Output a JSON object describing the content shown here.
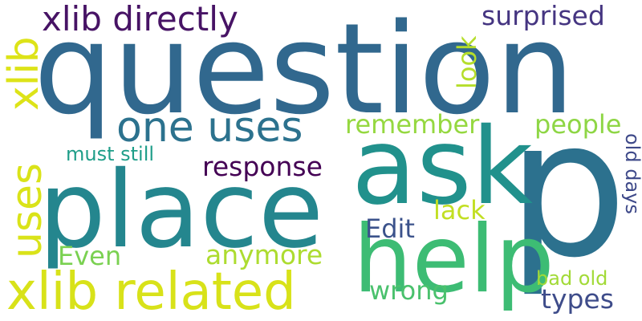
{
  "words": [
    {
      "key": "question",
      "text": "question",
      "color": "#31688e"
    },
    {
      "key": "p",
      "text": "p",
      "color": "#2c718e"
    },
    {
      "key": "ask",
      "text": "ask",
      "color": "#21918c"
    },
    {
      "key": "place",
      "text": "place",
      "color": "#24868e"
    },
    {
      "key": "help",
      "text": "help",
      "color": "#3dbc74"
    },
    {
      "key": "xlib_related",
      "text": "xlib related",
      "color": "#d8e219"
    },
    {
      "key": "xlib_directly",
      "text": "xlib directly",
      "color": "#471365"
    },
    {
      "key": "one_uses",
      "text": "one uses",
      "color": "#2c728e"
    },
    {
      "key": "xlib_vertical",
      "text": "xlib",
      "color": "#dde318"
    },
    {
      "key": "uses_vertical",
      "text": "uses",
      "color": "#dae319"
    },
    {
      "key": "surprised",
      "text": "surprised",
      "color": "#453581"
    },
    {
      "key": "look",
      "text": "look",
      "color": "#b5de2b"
    },
    {
      "key": "remember",
      "text": "remember",
      "color": "#95d840"
    },
    {
      "key": "people",
      "text": "people",
      "color": "#8ed645"
    },
    {
      "key": "old_days",
      "text": "old days",
      "color": "#3e4989"
    },
    {
      "key": "must_still",
      "text": "must still",
      "color": "#1f9e89"
    },
    {
      "key": "response",
      "text": "response",
      "color": "#440154"
    },
    {
      "key": "lack",
      "text": "lack",
      "color": "#c2df23"
    },
    {
      "key": "edit",
      "text": "Edit",
      "color": "#3b528b"
    },
    {
      "key": "even",
      "text": "Even",
      "color": "#7ad151"
    },
    {
      "key": "anymore",
      "text": "anymore",
      "color": "#addc30"
    },
    {
      "key": "wrong",
      "text": "wrong",
      "color": "#4ac16d"
    },
    {
      "key": "bad_old",
      "text": "bad old",
      "color": "#a2da37"
    },
    {
      "key": "types",
      "text": "types",
      "color": "#3e4c8a"
    }
  ]
}
